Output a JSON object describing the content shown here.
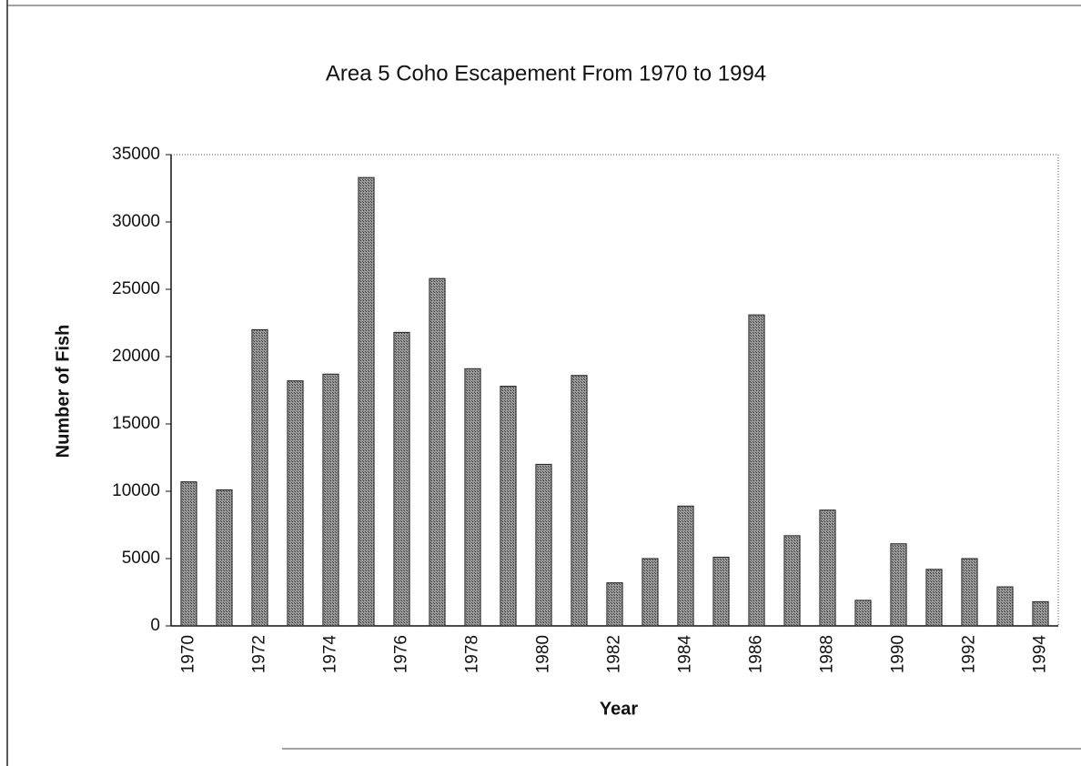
{
  "chart_data": {
    "type": "bar",
    "title": "Area 5 Coho Escapement From 1970 to 1994",
    "x_label": "Year",
    "y_label": "Number of Fish",
    "categories": [
      "1970",
      null,
      "1972",
      null,
      "1974",
      null,
      "1976",
      null,
      "1978",
      null,
      "1980",
      null,
      "1982",
      null,
      "1984",
      null,
      "1986",
      null,
      "1988",
      null,
      "1990",
      null,
      "1992",
      null,
      "1994"
    ],
    "values": [
      10700,
      10100,
      22000,
      18200,
      18700,
      33300,
      21800,
      25800,
      19100,
      17800,
      12000,
      18600,
      3200,
      5000,
      8900,
      5100,
      23100,
      6700,
      8600,
      1900,
      6100,
      4200,
      5000,
      2900,
      1800
    ],
    "color": "#7a7a7a",
    "ylim": [
      0,
      35000
    ],
    "yticks": [
      0,
      5000,
      10000,
      15000,
      20000,
      25000,
      30000,
      35000
    ],
    "grid": false
  }
}
